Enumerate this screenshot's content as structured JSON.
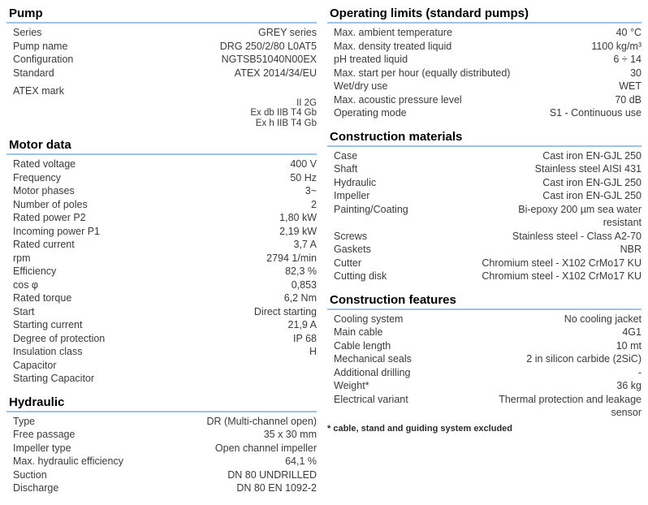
{
  "sections": {
    "pump": {
      "title": "Pump",
      "rows": [
        {
          "label": "Series",
          "value": "GREY series"
        },
        {
          "label": "Pump name",
          "value": "DRG 250/2/80 L0AT5"
        },
        {
          "label": "Configuration",
          "value": "NGTSB51040N00EX"
        },
        {
          "label": "Standard",
          "value": "ATEX 2014/34/EU"
        }
      ],
      "atex": {
        "label": "ATEX mark",
        "lines": [
          "II 2G",
          "Ex db IIB T4 Gb",
          "Ex h IIB T4 Gb"
        ]
      }
    },
    "motor": {
      "title": "Motor data",
      "rows": [
        {
          "label": "Rated voltage",
          "value": "400 V"
        },
        {
          "label": "Frequency",
          "value": "50 Hz"
        },
        {
          "label": "Motor phases",
          "value": "3~"
        },
        {
          "label": "Number of poles",
          "value": "2"
        },
        {
          "label": "Rated power P2",
          "value": "1,80 kW"
        },
        {
          "label": "Incoming power P1",
          "value": "2,19 kW"
        },
        {
          "label": "Rated current",
          "value": "3,7 A"
        },
        {
          "label": "rpm",
          "value": "2794 1/min"
        },
        {
          "label": "Efficiency",
          "value": "82,3 %"
        },
        {
          "label": "cos φ",
          "value": "0,853"
        },
        {
          "label": "Rated torque",
          "value": "6,2 Nm"
        },
        {
          "label": "Start",
          "value": "Direct starting"
        },
        {
          "label": "Starting current",
          "value": "21,9 A"
        },
        {
          "label": "Degree of protection",
          "value": "IP 68"
        },
        {
          "label": "Insulation class",
          "value": "H"
        },
        {
          "label": "Capacitor",
          "value": ""
        },
        {
          "label": "Starting Capacitor",
          "value": ""
        }
      ]
    },
    "hydraulic": {
      "title": "Hydraulic",
      "rows": [
        {
          "label": "Type",
          "value": "DR (Multi-channel open)"
        },
        {
          "label": "Free passage",
          "value": "35 x 30 mm"
        },
        {
          "label": "Impeller type",
          "value": "Open channel impeller"
        },
        {
          "label": "Max. hydraulic efficiency",
          "value": "64,1 %"
        },
        {
          "label": "Suction",
          "value": "DN 80 UNDRILLED"
        },
        {
          "label": "Discharge",
          "value": "DN 80 EN 1092-2"
        }
      ]
    },
    "operating": {
      "title": "Operating limits (standard pumps)",
      "rows": [
        {
          "label": "Max. ambient temperature",
          "value": "40 °C"
        },
        {
          "label": "Max. density treated liquid",
          "value": "1100 kg/m³"
        },
        {
          "label": "pH treated liquid",
          "value": "6 ÷ 14"
        },
        {
          "label": "Max. start per hour (equally distributed)",
          "value": "30"
        },
        {
          "label": "Wet/dry use",
          "value": "WET"
        },
        {
          "label": "Max. acoustic pressure level",
          "value": "70 dB"
        },
        {
          "label": "Operating mode",
          "value": "S1 - Continuous use"
        }
      ]
    },
    "materials": {
      "title": "Construction materials",
      "rows": [
        {
          "label": "Case",
          "value": "Cast iron EN-GJL 250"
        },
        {
          "label": "Shaft",
          "value": "Stainless steel AISI 431"
        },
        {
          "label": "Hydraulic",
          "value": "Cast iron EN-GJL 250"
        },
        {
          "label": "Impeller",
          "value": "Cast iron EN-GJL 250"
        },
        {
          "label": "Painting/Coating",
          "value": "Bi-epoxy 200 µm sea water\nresistant"
        },
        {
          "label": "Screws",
          "value": "Stainless steel - Class A2-70"
        },
        {
          "label": "Gaskets",
          "value": "NBR"
        },
        {
          "label": "Cutter",
          "value": "Chromium steel - X102 CrMo17 KU"
        },
        {
          "label": "Cutting disk",
          "value": "Chromium steel - X102 CrMo17 KU"
        }
      ]
    },
    "features": {
      "title": "Construction features",
      "rows": [
        {
          "label": "Cooling system",
          "value": "No cooling jacket"
        },
        {
          "label": "Main cable",
          "value": "4G1"
        },
        {
          "label": "Cable length",
          "value": "10 mt"
        },
        {
          "label": "Mechanical seals",
          "value": "2 in silicon carbide (2SiC)"
        },
        {
          "label": "Additional drilling",
          "value": "-"
        },
        {
          "label": "Weight*",
          "value": "36 kg"
        },
        {
          "label": "Electrical variant",
          "value": "Thermal protection and leakage\nsensor"
        }
      ],
      "footnote": "* cable, stand and guiding system excluded"
    }
  },
  "colors": {
    "header_underline": "#9dc3e6",
    "header_text": "#000000",
    "body_text": "#3a3a3a"
  }
}
